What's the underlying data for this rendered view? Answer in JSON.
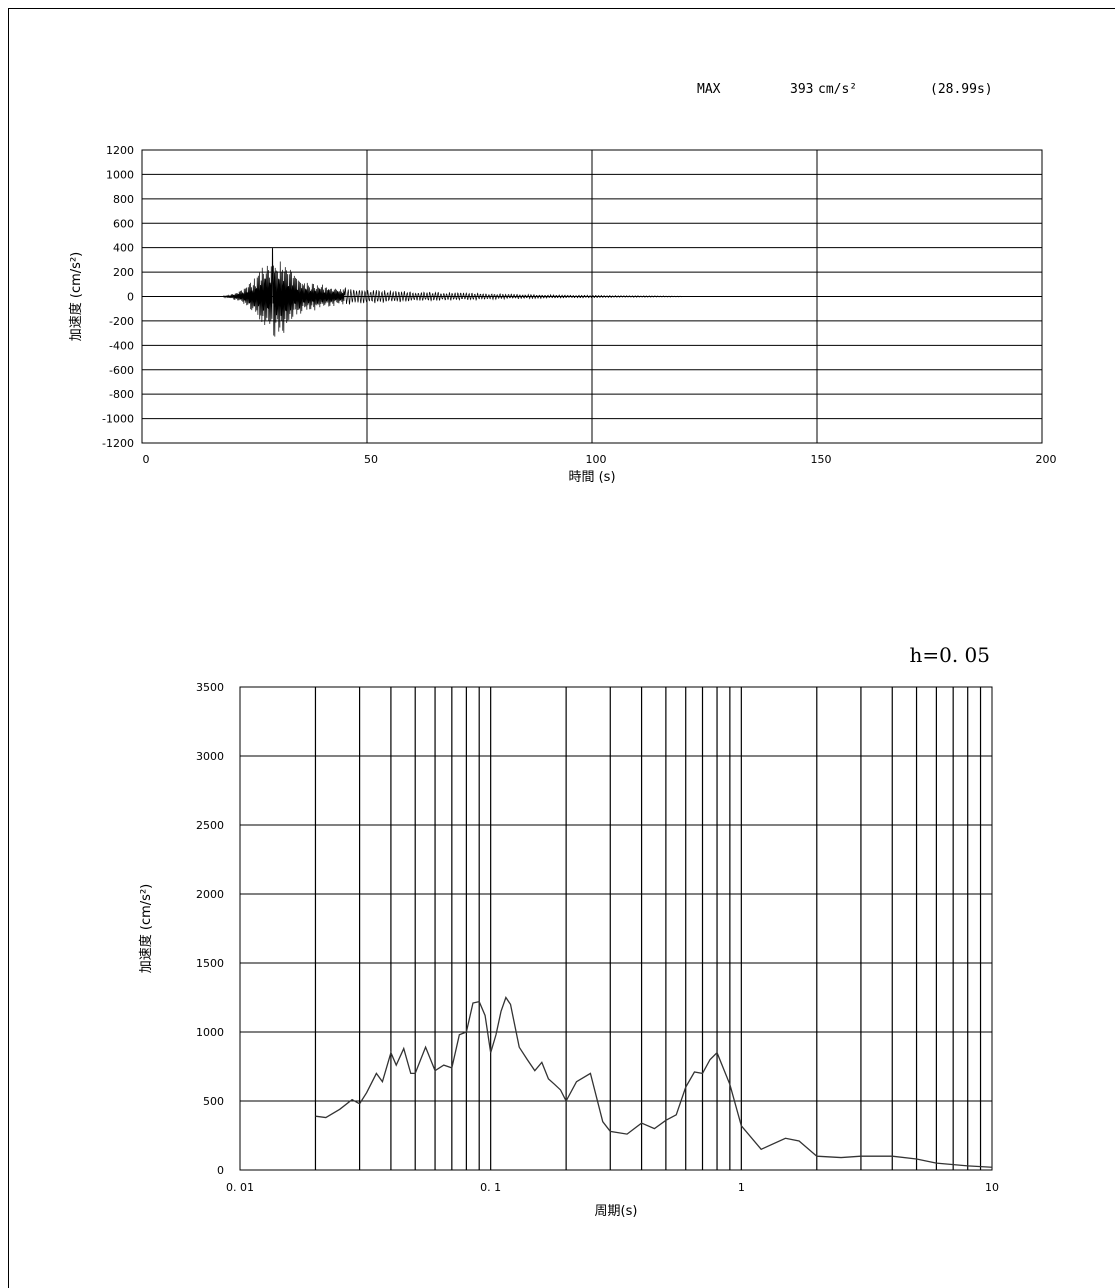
{
  "header": {
    "max_label": "MAX",
    "max_value": "393",
    "max_unit": "cm/s²",
    "max_time": "(28.99s)"
  },
  "chart_data": [
    {
      "type": "line",
      "description_role": "acceleration time history",
      "title": "",
      "xlabel": "時間 (s)",
      "ylabel": "加速度 (cm/s²)",
      "xlim": [
        0,
        200
      ],
      "ylim": [
        -1200,
        1200
      ],
      "xticks": [
        0,
        50,
        100,
        150,
        200
      ],
      "yticks": [
        1200,
        1000,
        800,
        600,
        400,
        200,
        0,
        -200,
        -400,
        -600,
        -800,
        -1000,
        -1200
      ],
      "grid": true,
      "series": [
        {
          "x": [
            18,
            20,
            22,
            24,
            26,
            27,
            28,
            28.99,
            30,
            31,
            32,
            34,
            36,
            40,
            45,
            50,
            55,
            60,
            65,
            70,
            75,
            80,
            85,
            90,
            95,
            100,
            105,
            110,
            115,
            120
          ],
          "envelope": [
            5,
            20,
            60,
            120,
            220,
            300,
            340,
            393,
            370,
            330,
            280,
            200,
            150,
            100,
            75,
            60,
            50,
            42,
            38,
            33,
            28,
            22,
            18,
            15,
            12,
            10,
            8,
            7,
            5,
            3
          ]
        }
      ]
    },
    {
      "type": "line",
      "description_role": "acceleration response spectrum",
      "title": "h=0. 05",
      "xlabel": "周期(s)",
      "ylabel": "加速度 (cm/s²)",
      "xscale": "log",
      "xlim": [
        0.01,
        10
      ],
      "ylim": [
        0,
        3500
      ],
      "xticks": [
        "0. 01",
        "0. 1",
        "1",
        "10"
      ],
      "yticks": [
        0,
        500,
        1000,
        1500,
        2000,
        2500,
        3000,
        3500
      ],
      "grid": true,
      "series": [
        {
          "x": [
            0.02,
            0.022,
            0.025,
            0.028,
            0.03,
            0.032,
            0.035,
            0.037,
            0.04,
            0.042,
            0.045,
            0.048,
            0.05,
            0.055,
            0.06,
            0.065,
            0.07,
            0.075,
            0.08,
            0.085,
            0.09,
            0.095,
            0.1,
            0.105,
            0.11,
            0.115,
            0.12,
            0.13,
            0.14,
            0.15,
            0.16,
            0.17,
            0.18,
            0.19,
            0.2,
            0.22,
            0.25,
            0.28,
            0.3,
            0.35,
            0.4,
            0.45,
            0.5,
            0.55,
            0.6,
            0.65,
            0.7,
            0.75,
            0.8,
            0.9,
            1.0,
            1.2,
            1.5,
            1.7,
            2.0,
            2.5,
            3.0,
            4.0,
            5.0,
            6.0,
            8.0,
            10.0
          ],
          "y": [
            390,
            380,
            440,
            510,
            480,
            560,
            700,
            640,
            850,
            760,
            880,
            700,
            700,
            890,
            720,
            760,
            740,
            980,
            1000,
            1210,
            1220,
            1120,
            850,
            980,
            1150,
            1250,
            1200,
            890,
            800,
            720,
            780,
            660,
            620,
            580,
            500,
            640,
            700,
            350,
            280,
            260,
            340,
            300,
            360,
            400,
            600,
            710,
            700,
            800,
            850,
            620,
            320,
            150,
            230,
            210,
            100,
            90,
            100,
            100,
            80,
            50,
            30,
            20
          ]
        }
      ]
    }
  ]
}
